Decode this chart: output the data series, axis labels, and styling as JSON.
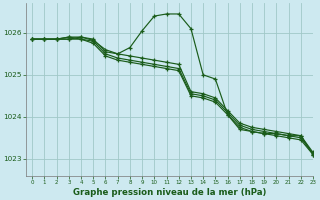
{
  "background_color": "#cde9f0",
  "grid_color": "#a0c8c8",
  "line_color": "#1a5c1a",
  "title": "Graphe pression niveau de la mer (hPa)",
  "xlim": [
    -0.5,
    23
  ],
  "ylim": [
    1022.6,
    1026.7
  ],
  "yticks": [
    1023,
    1024,
    1025,
    1026
  ],
  "xticks": [
    0,
    1,
    2,
    3,
    4,
    5,
    6,
    7,
    8,
    9,
    10,
    11,
    12,
    13,
    14,
    15,
    16,
    17,
    18,
    19,
    20,
    21,
    22,
    23
  ],
  "line1": {
    "x": [
      0,
      1,
      2,
      3,
      4,
      5,
      6,
      7,
      8,
      9,
      10,
      11,
      12,
      13,
      14,
      15,
      16,
      17,
      18,
      19,
      20,
      21,
      22,
      23
    ],
    "y": [
      1025.85,
      1025.85,
      1025.85,
      1025.85,
      1025.9,
      1025.85,
      1025.55,
      1025.5,
      1025.65,
      1026.05,
      1026.4,
      1026.45,
      1026.45,
      1026.1,
      1025.0,
      1024.9,
      1024.05,
      1023.7,
      1023.65,
      1023.6,
      1023.6,
      1023.55,
      1023.55,
      1023.1
    ]
  },
  "line2": {
    "x": [
      0,
      1,
      2,
      3,
      4,
      5,
      6,
      7,
      8,
      9,
      10,
      11,
      12,
      13,
      14,
      15,
      16,
      17,
      18,
      19,
      20,
      21,
      22,
      23
    ],
    "y": [
      1025.85,
      1025.85,
      1025.85,
      1025.85,
      1025.85,
      1025.75,
      1025.45,
      1025.35,
      1025.3,
      1025.25,
      1025.2,
      1025.15,
      1025.1,
      1024.5,
      1024.45,
      1024.35,
      1024.05,
      1023.75,
      1023.65,
      1023.6,
      1023.55,
      1023.5,
      1023.45,
      1023.1
    ]
  },
  "line3": {
    "x": [
      0,
      1,
      2,
      3,
      4,
      5,
      6,
      7,
      8,
      9,
      10,
      11,
      12,
      13,
      14,
      15,
      16,
      17,
      18,
      19,
      20,
      21,
      22,
      23
    ],
    "y": [
      1025.85,
      1025.85,
      1025.85,
      1025.9,
      1025.85,
      1025.8,
      1025.5,
      1025.4,
      1025.35,
      1025.3,
      1025.25,
      1025.2,
      1025.15,
      1024.55,
      1024.5,
      1024.4,
      1024.1,
      1023.8,
      1023.7,
      1023.65,
      1023.6,
      1023.55,
      1023.5,
      1023.12
    ]
  },
  "line4": {
    "x": [
      0,
      1,
      2,
      3,
      4,
      5,
      6,
      7,
      8,
      9,
      10,
      11,
      12,
      13,
      14,
      15,
      16,
      17,
      18,
      19,
      20,
      21,
      22,
      23
    ],
    "y": [
      1025.85,
      1025.85,
      1025.85,
      1025.9,
      1025.9,
      1025.82,
      1025.6,
      1025.5,
      1025.45,
      1025.4,
      1025.35,
      1025.3,
      1025.25,
      1024.6,
      1024.55,
      1024.45,
      1024.15,
      1023.85,
      1023.75,
      1023.7,
      1023.65,
      1023.6,
      1023.55,
      1023.15
    ]
  }
}
